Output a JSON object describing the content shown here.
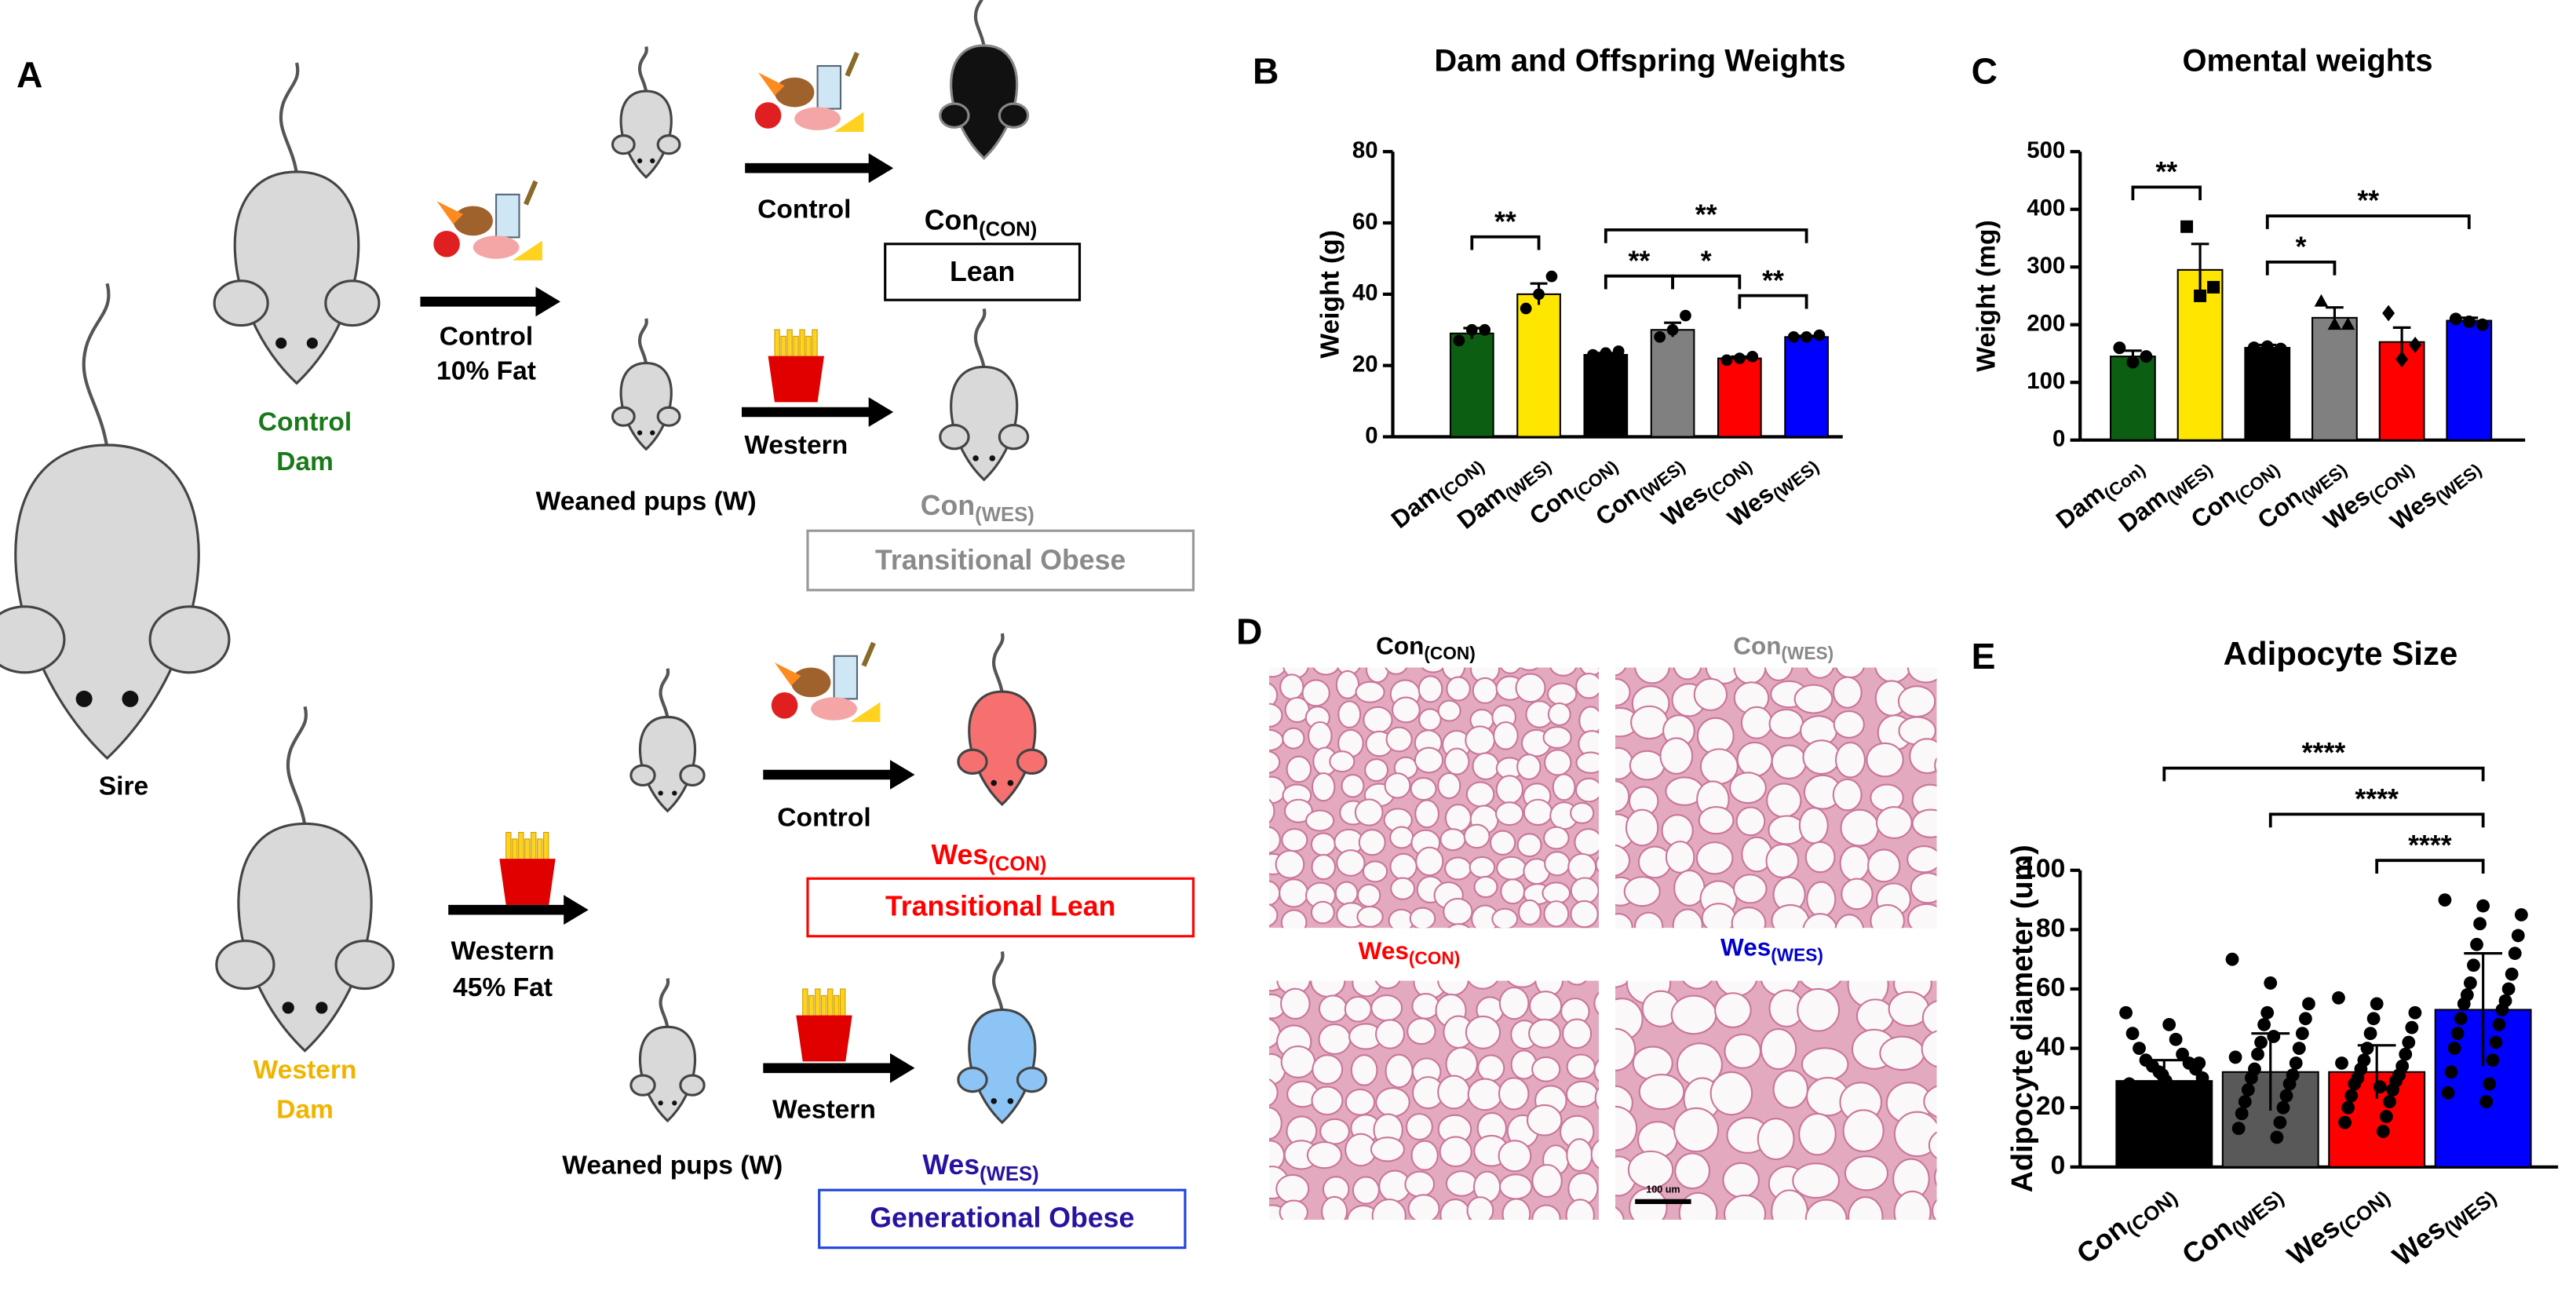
{
  "panel_labels": [
    "A",
    "B",
    "C",
    "D",
    "E"
  ],
  "diagram": {
    "sire": "Sire",
    "control_dam": [
      "Control",
      "Dam"
    ],
    "western_dam": [
      "Western",
      "Dam"
    ],
    "control_diet": [
      "Control",
      "10% Fat"
    ],
    "western_diet": [
      "Western",
      "45% Fat"
    ],
    "weaned_pups": [
      "Weaned pups (W)",
      "Weaned pups (W)"
    ],
    "offspring": [
      {
        "diet": "Control",
        "group": "Con(CON)",
        "phenotype": "Lean"
      },
      {
        "diet": "Western",
        "group": "Con(WES)",
        "phenotype": "Transitional Obese"
      },
      {
        "diet": "Control",
        "group": "Wes(CON)",
        "phenotype": "Transitional Lean"
      },
      {
        "diet": "Western",
        "group": "Wes(WES)",
        "phenotype": "Generational Obese"
      }
    ]
  },
  "histology": {
    "panels": [
      "Con(CON)",
      "Con(WES)",
      "Wes(CON)",
      "Wes(WES)"
    ],
    "scale_bar": "100 um"
  },
  "chart_data": [
    {
      "type": "bar",
      "title": "Dam and Offspring Weights",
      "ylabel": "Weight  (g)",
      "categories": [
        "Dam(CON)",
        "Dam(WES)",
        "Con(CON)",
        "Con(WES)",
        "Wes(CON)",
        "Wes(WES)"
      ],
      "values": [
        29,
        40,
        23,
        30,
        22,
        28
      ],
      "errors": [
        1.5,
        3,
        0.5,
        2,
        0.5,
        0.3
      ],
      "points": [
        [
          27,
          30,
          30
        ],
        [
          36,
          40,
          45
        ],
        [
          23,
          23.5,
          24
        ],
        [
          28,
          30,
          34
        ],
        [
          21.5,
          22,
          22.5
        ],
        [
          28,
          28,
          28.5
        ]
      ],
      "colors": [
        "#0b5e12",
        "#ffe600",
        "#000000",
        "#808080",
        "#ff0000",
        "#0000ff"
      ],
      "ylim": [
        0,
        80
      ],
      "yticks": [
        0,
        20,
        40,
        60,
        80
      ],
      "grid": false,
      "significance": [
        {
          "from": 0,
          "to": 1,
          "label": "**"
        },
        {
          "from": 2,
          "to": 3,
          "label": "**"
        },
        {
          "from": 3,
          "to": 4,
          "label": "*"
        },
        {
          "from": 4,
          "to": 5,
          "label": "**"
        },
        {
          "from": 2,
          "to": 5,
          "label": "**"
        }
      ]
    },
    {
      "type": "bar",
      "title": "Omental weights",
      "ylabel": "Weight (mg)",
      "categories": [
        "Dam(Con)",
        "Dam(WES)",
        "Con(CON)",
        "Con(WES)",
        "Wes(CON)",
        "Wes(WES)"
      ],
      "values": [
        145,
        295,
        160,
        212,
        170,
        207
      ],
      "errors": [
        10,
        45,
        5,
        18,
        25,
        5
      ],
      "points": [
        [
          160,
          135,
          145
        ],
        [
          370,
          250,
          265
        ],
        [
          160,
          162,
          158
        ],
        [
          240,
          200,
          200
        ],
        [
          220,
          140,
          165
        ],
        [
          210,
          205,
          200
        ]
      ],
      "markers": [
        "circle",
        "square",
        "circle",
        "triangle",
        "diamond",
        "circle"
      ],
      "colors": [
        "#0b5e12",
        "#ffe600",
        "#000000",
        "#808080",
        "#ff0000",
        "#0000ff"
      ],
      "ylim": [
        0,
        500
      ],
      "yticks": [
        0,
        100,
        200,
        300,
        400,
        500
      ],
      "grid": false,
      "significance": [
        {
          "from": 0,
          "to": 1,
          "label": "**"
        },
        {
          "from": 2,
          "to": 3,
          "label": "*"
        },
        {
          "from": 2,
          "to": 5,
          "label": "**"
        }
      ]
    },
    {
      "type": "bar",
      "title": "Adipocyte Size",
      "ylabel": "Adipocyte diameter (um)",
      "categories": [
        "Con(CON)",
        "Con(WES)",
        "Wes(CON)",
        "Wes(WES)"
      ],
      "values": [
        29,
        32,
        32,
        53
      ],
      "errors": [
        7,
        13,
        9,
        19
      ],
      "points": [
        [
          52,
          48,
          45,
          43,
          40,
          38,
          36,
          35,
          34,
          33,
          32,
          30,
          29,
          28,
          27,
          26,
          25,
          24,
          22,
          20,
          18,
          16,
          35,
          31
        ],
        [
          70,
          62,
          55,
          52,
          50,
          48,
          45,
          42,
          40,
          38,
          35,
          33,
          31,
          30,
          28,
          26,
          24,
          22,
          20,
          18,
          15,
          13,
          10,
          37,
          44
        ],
        [
          57,
          55,
          52,
          50,
          47,
          45,
          42,
          40,
          38,
          36,
          34,
          33,
          31,
          30,
          29,
          28,
          26,
          24,
          22,
          20,
          17,
          15,
          12,
          35,
          27
        ],
        [
          90,
          88,
          85,
          82,
          78,
          75,
          72,
          68,
          65,
          62,
          60,
          58,
          56,
          55,
          53,
          50,
          48,
          45,
          42,
          40,
          36,
          32,
          28,
          25,
          22
        ]
      ],
      "colors": [
        "#000000",
        "#595959",
        "#ff0000",
        "#0000ff"
      ],
      "ylim": [
        0,
        100
      ],
      "yticks": [
        0,
        20,
        40,
        60,
        80,
        100
      ],
      "grid": false,
      "significance": [
        {
          "from": 2,
          "to": 3,
          "label": "****"
        },
        {
          "from": 1,
          "to": 3,
          "label": "****"
        },
        {
          "from": 0,
          "to": 3,
          "label": "****"
        }
      ]
    }
  ]
}
